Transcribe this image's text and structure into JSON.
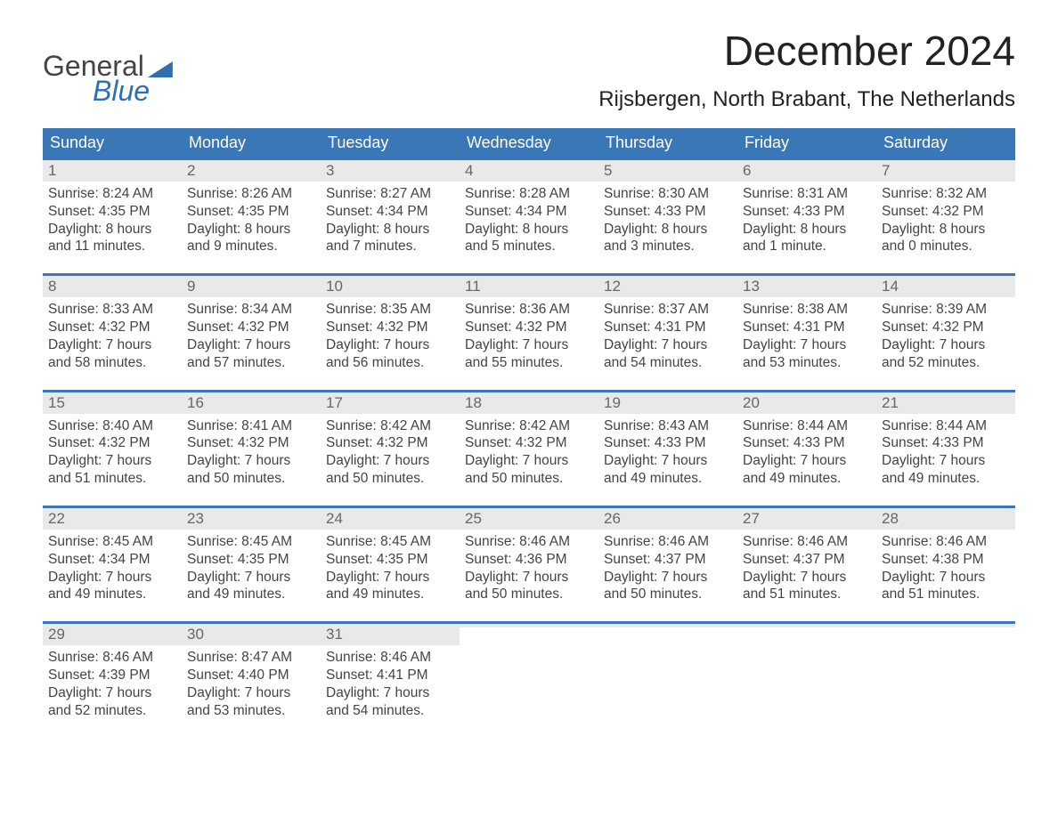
{
  "logo": {
    "top": "General",
    "bottom": "Blue"
  },
  "title": "December 2024",
  "location": "Rijsbergen, North Brabant, The Netherlands",
  "colors": {
    "header_bg": "#3a77b6",
    "header_text": "#ffffff",
    "daynum_bg": "#e9e9e9",
    "daynum_text": "#666666",
    "body_text": "#444444",
    "week_border": "#3a77b6",
    "logo_blue": "#2f6fb0"
  },
  "day_labels": [
    "Sunday",
    "Monday",
    "Tuesday",
    "Wednesday",
    "Thursday",
    "Friday",
    "Saturday"
  ],
  "weeks": [
    [
      {
        "n": "1",
        "sr": "Sunrise: 8:24 AM",
        "ss": "Sunset: 4:35 PM",
        "d1": "Daylight: 8 hours",
        "d2": "and 11 minutes."
      },
      {
        "n": "2",
        "sr": "Sunrise: 8:26 AM",
        "ss": "Sunset: 4:35 PM",
        "d1": "Daylight: 8 hours",
        "d2": "and 9 minutes."
      },
      {
        "n": "3",
        "sr": "Sunrise: 8:27 AM",
        "ss": "Sunset: 4:34 PM",
        "d1": "Daylight: 8 hours",
        "d2": "and 7 minutes."
      },
      {
        "n": "4",
        "sr": "Sunrise: 8:28 AM",
        "ss": "Sunset: 4:34 PM",
        "d1": "Daylight: 8 hours",
        "d2": "and 5 minutes."
      },
      {
        "n": "5",
        "sr": "Sunrise: 8:30 AM",
        "ss": "Sunset: 4:33 PM",
        "d1": "Daylight: 8 hours",
        "d2": "and 3 minutes."
      },
      {
        "n": "6",
        "sr": "Sunrise: 8:31 AM",
        "ss": "Sunset: 4:33 PM",
        "d1": "Daylight: 8 hours",
        "d2": "and 1 minute."
      },
      {
        "n": "7",
        "sr": "Sunrise: 8:32 AM",
        "ss": "Sunset: 4:32 PM",
        "d1": "Daylight: 8 hours",
        "d2": "and 0 minutes."
      }
    ],
    [
      {
        "n": "8",
        "sr": "Sunrise: 8:33 AM",
        "ss": "Sunset: 4:32 PM",
        "d1": "Daylight: 7 hours",
        "d2": "and 58 minutes."
      },
      {
        "n": "9",
        "sr": "Sunrise: 8:34 AM",
        "ss": "Sunset: 4:32 PM",
        "d1": "Daylight: 7 hours",
        "d2": "and 57 minutes."
      },
      {
        "n": "10",
        "sr": "Sunrise: 8:35 AM",
        "ss": "Sunset: 4:32 PM",
        "d1": "Daylight: 7 hours",
        "d2": "and 56 minutes."
      },
      {
        "n": "11",
        "sr": "Sunrise: 8:36 AM",
        "ss": "Sunset: 4:32 PM",
        "d1": "Daylight: 7 hours",
        "d2": "and 55 minutes."
      },
      {
        "n": "12",
        "sr": "Sunrise: 8:37 AM",
        "ss": "Sunset: 4:31 PM",
        "d1": "Daylight: 7 hours",
        "d2": "and 54 minutes."
      },
      {
        "n": "13",
        "sr": "Sunrise: 8:38 AM",
        "ss": "Sunset: 4:31 PM",
        "d1": "Daylight: 7 hours",
        "d2": "and 53 minutes."
      },
      {
        "n": "14",
        "sr": "Sunrise: 8:39 AM",
        "ss": "Sunset: 4:32 PM",
        "d1": "Daylight: 7 hours",
        "d2": "and 52 minutes."
      }
    ],
    [
      {
        "n": "15",
        "sr": "Sunrise: 8:40 AM",
        "ss": "Sunset: 4:32 PM",
        "d1": "Daylight: 7 hours",
        "d2": "and 51 minutes."
      },
      {
        "n": "16",
        "sr": "Sunrise: 8:41 AM",
        "ss": "Sunset: 4:32 PM",
        "d1": "Daylight: 7 hours",
        "d2": "and 50 minutes."
      },
      {
        "n": "17",
        "sr": "Sunrise: 8:42 AM",
        "ss": "Sunset: 4:32 PM",
        "d1": "Daylight: 7 hours",
        "d2": "and 50 minutes."
      },
      {
        "n": "18",
        "sr": "Sunrise: 8:42 AM",
        "ss": "Sunset: 4:32 PM",
        "d1": "Daylight: 7 hours",
        "d2": "and 50 minutes."
      },
      {
        "n": "19",
        "sr": "Sunrise: 8:43 AM",
        "ss": "Sunset: 4:33 PM",
        "d1": "Daylight: 7 hours",
        "d2": "and 49 minutes."
      },
      {
        "n": "20",
        "sr": "Sunrise: 8:44 AM",
        "ss": "Sunset: 4:33 PM",
        "d1": "Daylight: 7 hours",
        "d2": "and 49 minutes."
      },
      {
        "n": "21",
        "sr": "Sunrise: 8:44 AM",
        "ss": "Sunset: 4:33 PM",
        "d1": "Daylight: 7 hours",
        "d2": "and 49 minutes."
      }
    ],
    [
      {
        "n": "22",
        "sr": "Sunrise: 8:45 AM",
        "ss": "Sunset: 4:34 PM",
        "d1": "Daylight: 7 hours",
        "d2": "and 49 minutes."
      },
      {
        "n": "23",
        "sr": "Sunrise: 8:45 AM",
        "ss": "Sunset: 4:35 PM",
        "d1": "Daylight: 7 hours",
        "d2": "and 49 minutes."
      },
      {
        "n": "24",
        "sr": "Sunrise: 8:45 AM",
        "ss": "Sunset: 4:35 PM",
        "d1": "Daylight: 7 hours",
        "d2": "and 49 minutes."
      },
      {
        "n": "25",
        "sr": "Sunrise: 8:46 AM",
        "ss": "Sunset: 4:36 PM",
        "d1": "Daylight: 7 hours",
        "d2": "and 50 minutes."
      },
      {
        "n": "26",
        "sr": "Sunrise: 8:46 AM",
        "ss": "Sunset: 4:37 PM",
        "d1": "Daylight: 7 hours",
        "d2": "and 50 minutes."
      },
      {
        "n": "27",
        "sr": "Sunrise: 8:46 AM",
        "ss": "Sunset: 4:37 PM",
        "d1": "Daylight: 7 hours",
        "d2": "and 51 minutes."
      },
      {
        "n": "28",
        "sr": "Sunrise: 8:46 AM",
        "ss": "Sunset: 4:38 PM",
        "d1": "Daylight: 7 hours",
        "d2": "and 51 minutes."
      }
    ],
    [
      {
        "n": "29",
        "sr": "Sunrise: 8:46 AM",
        "ss": "Sunset: 4:39 PM",
        "d1": "Daylight: 7 hours",
        "d2": "and 52 minutes."
      },
      {
        "n": "30",
        "sr": "Sunrise: 8:47 AM",
        "ss": "Sunset: 4:40 PM",
        "d1": "Daylight: 7 hours",
        "d2": "and 53 minutes."
      },
      {
        "n": "31",
        "sr": "Sunrise: 8:46 AM",
        "ss": "Sunset: 4:41 PM",
        "d1": "Daylight: 7 hours",
        "d2": "and 54 minutes."
      },
      {
        "n": "",
        "sr": "",
        "ss": "",
        "d1": "",
        "d2": ""
      },
      {
        "n": "",
        "sr": "",
        "ss": "",
        "d1": "",
        "d2": ""
      },
      {
        "n": "",
        "sr": "",
        "ss": "",
        "d1": "",
        "d2": ""
      },
      {
        "n": "",
        "sr": "",
        "ss": "",
        "d1": "",
        "d2": ""
      }
    ]
  ]
}
